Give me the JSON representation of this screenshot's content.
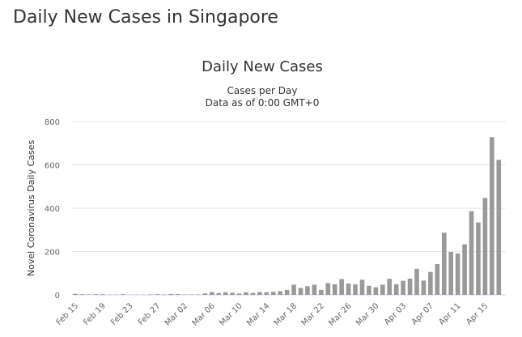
{
  "page_title": "Daily New Cases in Singapore",
  "chart_data": {
    "type": "bar",
    "title": "Daily New Cases",
    "subtitle": [
      "Cases per Day",
      "Data as of 0:00 GMT+0"
    ],
    "y_label": "Novel Coronavirus Daily Cases",
    "categories": [
      "Feb 15",
      null,
      null,
      null,
      "Feb 19",
      null,
      null,
      null,
      "Feb 23",
      null,
      null,
      null,
      "Feb 27",
      null,
      null,
      null,
      "Mar 02",
      null,
      null,
      null,
      "Mar 06",
      null,
      null,
      null,
      "Mar 10",
      null,
      null,
      null,
      "Mar 14",
      null,
      null,
      null,
      "Mar 18",
      null,
      null,
      null,
      "Mar 22",
      null,
      null,
      null,
      "Mar 26",
      null,
      null,
      null,
      "Mar 30",
      null,
      null,
      null,
      "Apr 03",
      null,
      null,
      null,
      "Apr 07",
      null,
      null,
      null,
      "Apr 11",
      null,
      null,
      null,
      "Apr 15",
      null,
      null
    ],
    "values": [
      5,
      3,
      2,
      3,
      3,
      1,
      1,
      3,
      1,
      1,
      1,
      2,
      3,
      2,
      4,
      4,
      2,
      2,
      2,
      7,
      13,
      8,
      12,
      10,
      6,
      12,
      9,
      13,
      12,
      14,
      17,
      23,
      47,
      32,
      40,
      47,
      23,
      54,
      49,
      73,
      52,
      49,
      70,
      42,
      35,
      47,
      74,
      49,
      65,
      75,
      120,
      66,
      106,
      142,
      287,
      198,
      191,
      233,
      386,
      334,
      447,
      728,
      623
    ],
    "color": "#999999",
    "ylim": [
      0,
      800
    ],
    "yticks": [
      0,
      200,
      400,
      600,
      800
    ],
    "grid": true
  }
}
